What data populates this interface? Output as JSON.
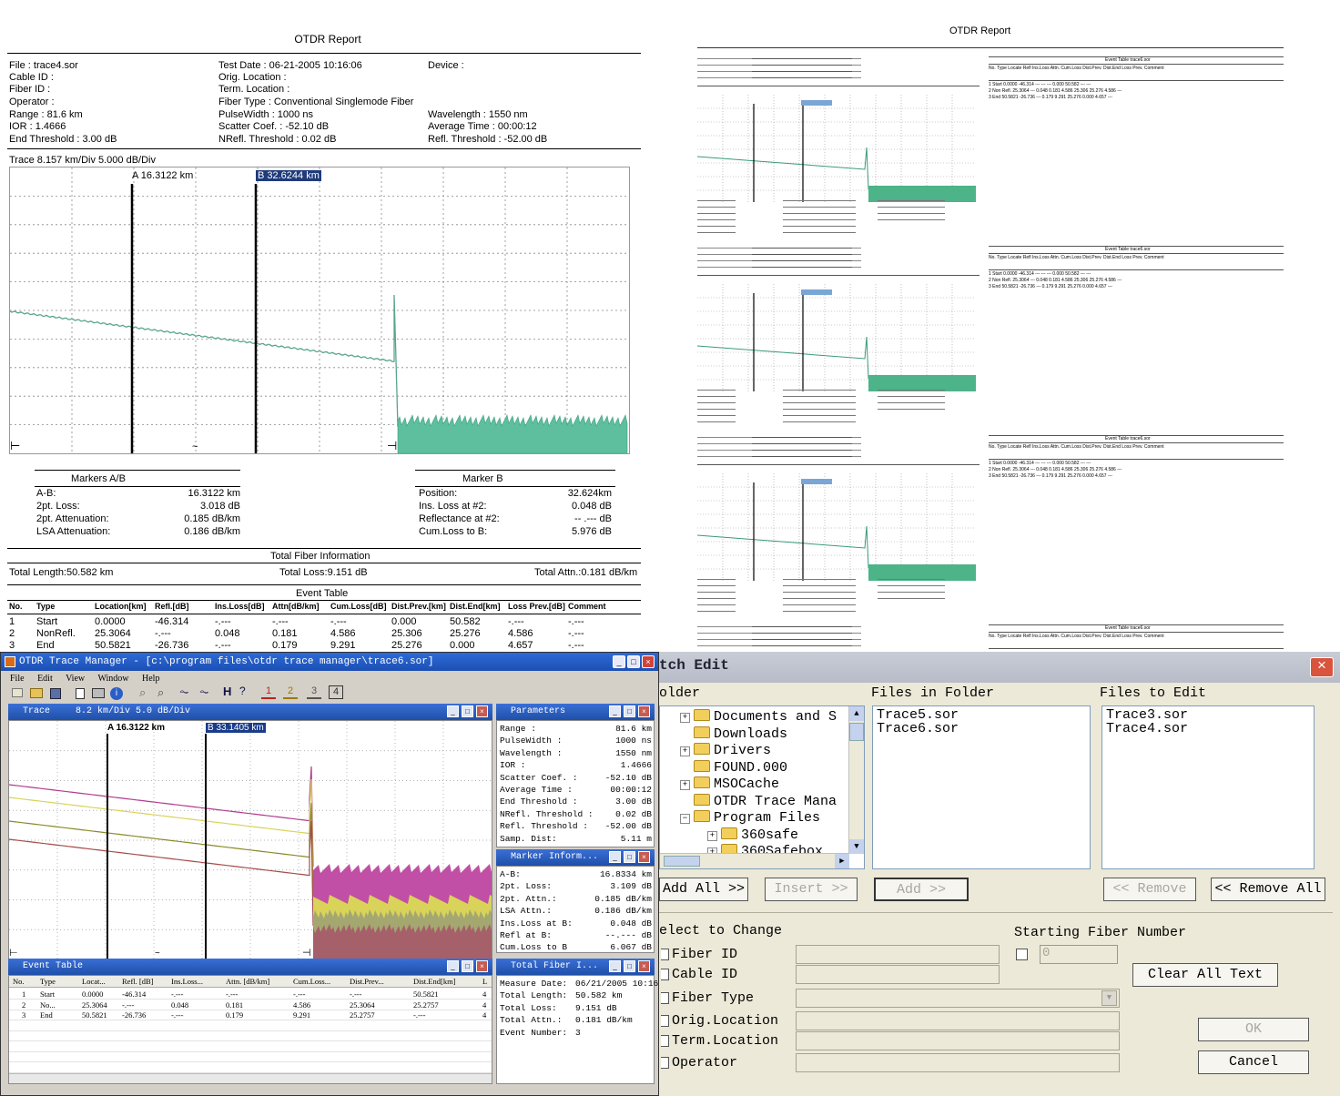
{
  "report": {
    "title": "OTDR Report",
    "header": {
      "file": "File : trace4.sor",
      "cable_id": "Cable ID :",
      "fiber_id": "Fiber ID :",
      "operator": "Operator :",
      "range": "Range :  81.6 km",
      "ior": "IOR :  1.4666",
      "end_threshold": "End Threshold :  3.00 dB",
      "test_date": "Test Date : 06-21-2005  10:16:06",
      "orig_location": "Orig. Location :",
      "term_location": "Term. Location :",
      "fiber_type": "Fiber Type : Conventional  Singlemode  Fiber",
      "pulse_width": "PulseWidth :  1000 ns",
      "scatter_coef": "Scatter Coef. : -52.10 dB",
      "nrefl_threshold": "NRefl. Threshold :  0.02 dB",
      "device": "Device :",
      "wavelength": "Wavelength :  1550 nm",
      "average_time": "Average Time :  00:00:12",
      "refl_threshold": "Refl. Threshold : -52.00 dB"
    },
    "trace_label": "Trace  8.157 km/Div  5.000 dB/Div",
    "marker_a": "A 16.3122 km",
    "marker_b": "B 32.6244 km",
    "markers_ab": {
      "title": "Markers A/B",
      "rows": [
        {
          "k": "A-B:",
          "v": "16.3122 km"
        },
        {
          "k": "2pt. Loss:",
          "v": "3.018 dB"
        },
        {
          "k": "2pt. Attenuation:",
          "v": "0.185 dB/km"
        },
        {
          "k": "LSA Attenuation:",
          "v": "0.186 dB/km"
        }
      ]
    },
    "marker_b_box": {
      "title": "Marker B",
      "rows": [
        {
          "k": "Position:",
          "v": "32.624km"
        },
        {
          "k": "Ins. Loss at #2:",
          "v": "0.048 dB"
        },
        {
          "k": "Reflectance at #2:",
          "v": "-- .--- dB"
        },
        {
          "k": "Cum.Loss to B:",
          "v": "5.976 dB"
        }
      ]
    },
    "total_fiber": {
      "title": "Total Fiber Information",
      "length": "Total Length:50.582 km",
      "loss": "Total Loss:9.151 dB",
      "attn": "Total Attn.:0.181 dB/km"
    },
    "event_table": {
      "title": "Event Table",
      "headers": [
        "No.",
        "Type",
        "Location[km]",
        "Refl.[dB]",
        "Ins.Loss[dB]",
        "Attn[dB/km]",
        "Cum.Loss[dB]",
        "Dist.Prev.[km]",
        "Dist.End[km]",
        "Loss Prev.[dB]",
        "Comment"
      ],
      "rows": [
        [
          "1",
          "Start",
          "0.0000",
          "-46.314",
          "-.---",
          "-.---",
          "-.---",
          "0.000",
          "50.582",
          "-.---",
          "-.---"
        ],
        [
          "2",
          "NonRefl.",
          "25.3064",
          "-.---",
          "0.048",
          "0.181",
          "4.586",
          "25.306",
          "25.276",
          "4.586",
          "-.---"
        ],
        [
          "3",
          "End",
          "50.5821",
          "-26.736",
          "-.---",
          "0.179",
          "9.291",
          "25.276",
          "0.000",
          "4.657",
          "-.---"
        ]
      ]
    }
  },
  "thumbs": {
    "title": "OTDR Report",
    "event_table_title": "Event Table  trace6.sor",
    "event_headers": "No. Type    Locate  Refl   Ins.Loss  Attn.   Cum.Loss Dist.Prev. Dist.End  Loss Prev. Comment",
    "event_rows": [
      "1   Start   0.0000  -46.314  ---     ---     ---    0.000   50.582  ---   ---",
      "2   Non Refl. 25.3064  ---   0.048  0.181  4.586  25.306  25.276  4.586  ---",
      "3   End     50.5821  -26.736  ---  0.179  9.291  25.276  0.000  4.657  ---"
    ]
  },
  "trace_manager": {
    "title": "OTDR Trace Manager - [c:\\program files\\otdr trace manager\\trace6.sor]",
    "menu": [
      "File",
      "Edit",
      "View",
      "Window",
      "Help"
    ],
    "toolbar_nums": [
      "1",
      "2",
      "3",
      "4"
    ],
    "trace_panel": {
      "title": "Trace",
      "scale": "8.2 km/Div     5.0 dB/Div",
      "marker_a": "A 16.3122 km",
      "marker_b": "B 33.1405 km"
    },
    "parameters": {
      "title": "Parameters",
      "rows": [
        [
          "Range :",
          "81.6  km"
        ],
        [
          "PulseWidth :",
          "1000  ns"
        ],
        [
          "Wavelength :",
          "1550  nm"
        ],
        [
          "IOR :",
          "1.4666"
        ],
        [
          "Scatter Coef. :",
          "-52.10  dB"
        ],
        [
          "Average Time :",
          "00:00:12"
        ],
        [
          "End Threshold :",
          "3.00  dB"
        ],
        [
          "NRefl. Threshold :",
          "0.02  dB"
        ],
        [
          "Refl. Threshold :",
          "-52.00  dB"
        ],
        [
          "Samp. Dist:",
          "5.11  m"
        ]
      ]
    },
    "marker_info": {
      "title": "Marker Inform...",
      "rows": [
        [
          "A-B:",
          "16.8334  km"
        ],
        [
          "2pt. Loss:",
          "3.109  dB"
        ],
        [
          "2pt. Attn.:",
          "0.185  dB/km"
        ],
        [
          "LSA Attn.:",
          "0.186  dB/km"
        ],
        [
          "Ins.Loss at B:",
          "0.048  dB"
        ],
        [
          "Refl at B:",
          "--.---  dB"
        ],
        [
          "Cum.Loss to B",
          "6.067  dB"
        ]
      ]
    },
    "event_table": {
      "title": "Event Table",
      "headers": [
        "No.",
        "Type",
        "Locat...",
        "Refl. [dB]",
        "Ins.Loss...",
        "Attn. [dB/km]",
        "Cum.Loss...",
        "Dist.Prev...",
        "Dist.End[km]",
        "L"
      ],
      "rows": [
        [
          "1",
          "Start",
          "0.0000",
          "-46.314",
          "-.---",
          "-.---",
          "-.---",
          "-.---",
          "50.5821",
          "4"
        ],
        [
          "2",
          "No...",
          "25.3064",
          "-.---",
          "0.048",
          "0.181",
          "4.586",
          "25.3064",
          "25.2757",
          "4"
        ],
        [
          "3",
          "End",
          "50.5821",
          "-26.736",
          "-.---",
          "0.179",
          "9.291",
          "25.2757",
          "-.---",
          "4"
        ]
      ]
    },
    "total_fiber": {
      "title": "Total Fiber I...",
      "rows": [
        [
          "Measure Date:",
          "06/21/2005 10:16:0"
        ],
        [
          "Total Length:",
          "50.582  km"
        ],
        [
          "Total Loss:",
          "9.151  dB"
        ],
        [
          "Total Attn.:",
          "0.181  dB/km"
        ],
        [
          "Event Number:",
          "3"
        ]
      ]
    },
    "series_colors": [
      "#b03b8e",
      "#d9d35a",
      "#8a8a2a",
      "#a54a4a"
    ]
  },
  "batch_edit": {
    "title": "tch Edit",
    "folder_label": "older",
    "files_in_folder_label": "Files in Folder",
    "files_to_edit_label": "Files to Edit",
    "tree": [
      "Documents and S",
      "Downloads",
      "Drivers",
      "FOUND.000",
      "MSOCache",
      "OTDR Trace Mana",
      "Program Files",
      "360safe",
      "360Safebox"
    ],
    "files_in_folder": [
      "Trace5.sor",
      "Trace6.sor"
    ],
    "files_to_edit": [
      "Trace3.sor",
      "Trace4.sor"
    ],
    "btn_add_all": "Add All >>",
    "btn_insert": "Insert >>",
    "btn_add": "Add >>",
    "btn_remove": "<< Remove",
    "btn_remove_all": "<< Remove All",
    "select_label": "elect to Change",
    "starting_fiber_label": "Starting Fiber Number",
    "starting_fiber_value": "0",
    "fields": [
      "Fiber ID",
      "Cable ID",
      "Fiber Type",
      "Orig.Location",
      "Term.Location",
      "Operator"
    ],
    "btn_clear": "Clear All Text",
    "btn_ok": "OK",
    "btn_cancel": "Cancel"
  }
}
